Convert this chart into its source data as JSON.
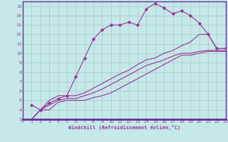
{
  "xlabel": "Windchill (Refroidissement éolien,°C)",
  "bg_color": "#c5e8e8",
  "grid_color": "#aacfcf",
  "line_color": "#993399",
  "axis_bar_color": "#663399",
  "xlim": [
    0,
    23
  ],
  "ylim": [
    3,
    15.5
  ],
  "xticks": [
    0,
    1,
    2,
    3,
    4,
    5,
    6,
    7,
    8,
    9,
    10,
    11,
    12,
    13,
    14,
    15,
    16,
    17,
    18,
    19,
    20,
    21,
    22,
    23
  ],
  "yticks": [
    3,
    4,
    5,
    6,
    7,
    8,
    9,
    10,
    11,
    12,
    13,
    14,
    15
  ],
  "series1_x": [
    1,
    2,
    3,
    4,
    5,
    6,
    7,
    8,
    9,
    10,
    11,
    12,
    13,
    14,
    15,
    16,
    17,
    18,
    19,
    20,
    21,
    22,
    23
  ],
  "series1_y": [
    4.5,
    4.0,
    4.7,
    5.2,
    5.5,
    7.5,
    9.5,
    11.5,
    12.5,
    13.0,
    13.0,
    13.3,
    13.0,
    14.7,
    15.3,
    14.8,
    14.2,
    14.5,
    14.0,
    13.2,
    12.0,
    10.5,
    10.5
  ],
  "series2_x": [
    1,
    2,
    3,
    4,
    5,
    6,
    7,
    8,
    9,
    10,
    11,
    12,
    13,
    14,
    15,
    16,
    17,
    18,
    19,
    20,
    21,
    22,
    23
  ],
  "series2_y": [
    3.0,
    4.0,
    5.0,
    5.5,
    5.5,
    5.5,
    5.8,
    6.3,
    6.8,
    7.3,
    7.8,
    8.2,
    8.8,
    9.3,
    9.5,
    10.0,
    10.3,
    10.8,
    11.2,
    12.0,
    12.0,
    10.5,
    10.5
  ],
  "series3_x": [
    1,
    2,
    3,
    4,
    5,
    6,
    7,
    8,
    9,
    10,
    11,
    12,
    13,
    14,
    15,
    16,
    17,
    18,
    19,
    20,
    21,
    22,
    23
  ],
  "series3_y": [
    3.0,
    4.0,
    4.5,
    5.0,
    5.2,
    5.2,
    5.5,
    5.8,
    6.2,
    6.7,
    7.2,
    7.7,
    8.2,
    8.7,
    9.0,
    9.3,
    9.7,
    10.0,
    10.0,
    10.2,
    10.3,
    10.3,
    10.3
  ],
  "series4_x": [
    1,
    2,
    3,
    4,
    5,
    6,
    7,
    8,
    9,
    10,
    11,
    12,
    13,
    14,
    15,
    16,
    17,
    18,
    19,
    20,
    21,
    22,
    23
  ],
  "series4_y": [
    3.0,
    4.0,
    4.0,
    4.8,
    5.0,
    5.0,
    5.0,
    5.3,
    5.5,
    5.8,
    6.3,
    6.8,
    7.3,
    7.8,
    8.3,
    8.8,
    9.3,
    9.8,
    9.8,
    10.0,
    10.2,
    10.2,
    10.2
  ]
}
